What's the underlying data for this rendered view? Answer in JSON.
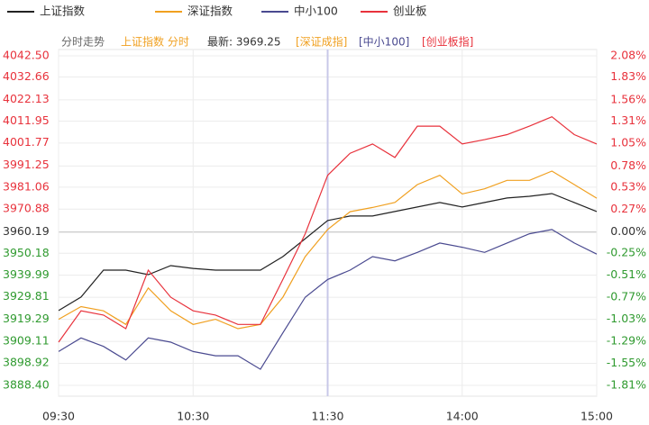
{
  "chart_data": {
    "type": "line",
    "header": {
      "mode": "分时走势",
      "index": "上证指数 分时",
      "latest": "最新: 3969.25",
      "link1": "[深证成指]",
      "link2": "[中小100]",
      "link3": "[创业板指]"
    },
    "x": [
      0,
      10,
      20,
      30,
      40,
      50,
      60,
      70,
      80,
      90,
      100,
      110,
      120,
      130,
      140,
      150,
      160,
      170,
      180,
      190,
      200,
      210,
      220,
      230,
      240
    ],
    "xlim": [
      0,
      240
    ],
    "xticks": [
      {
        "value": 0,
        "label": "09:30"
      },
      {
        "value": 60,
        "label": "10:30"
      },
      {
        "value": 120,
        "label": "11:30"
      },
      {
        "value": 180,
        "label": "14:00"
      },
      {
        "value": 240,
        "label": "15:00"
      }
    ],
    "ylim": [
      3888.4,
      4042.5
    ],
    "yticks": [
      {
        "value": 4042.5,
        "label": "4042.50"
      },
      4032.66,
      4022.13,
      4011.95,
      4001.77,
      3991.25,
      3981.06,
      3970.88,
      3960.19,
      3950.18,
      3939.99,
      3929.81,
      3919.29,
      3909.11,
      3898.92,
      {
        "value": 3888.4,
        "label": "3888.40"
      }
    ],
    "y2lim": [
      -1.81,
      2.08
    ],
    "y2ticks": [
      {
        "value": 2.08,
        "label": "2.08%"
      },
      {
        "value": 1.83,
        "label": "1.83%"
      },
      {
        "value": 1.56,
        "label": "1.56%"
      },
      {
        "value": 1.31,
        "label": "1.31%"
      },
      {
        "value": 1.05,
        "label": "1.05%"
      },
      {
        "value": 0.78,
        "label": "0.78%"
      },
      {
        "value": 0.53,
        "label": "0.53%"
      },
      {
        "value": 0.27,
        "label": "0.27%"
      },
      {
        "value": 0,
        "label": "0.00%"
      },
      {
        "value": -0.25,
        "label": "-0.25%"
      },
      {
        "value": -0.51,
        "label": "-0.51%"
      },
      {
        "value": -0.77,
        "label": "-0.77%"
      },
      {
        "value": -1.03,
        "label": "-1.03%"
      },
      {
        "value": -1.29,
        "label": "-1.29%"
      },
      {
        "value": -1.55,
        "label": "-1.55%"
      },
      {
        "value": -1.81,
        "label": "-1.81%"
      }
    ],
    "up_color": "#e8323c",
    "down_color": "#2f9a2f",
    "flat_color": "#333333",
    "grid": true,
    "series": [
      {
        "name": "上证指数",
        "color": "#222222",
        "values": [
          3923.4,
          3929.7,
          3942.3,
          3942.3,
          3940.2,
          3944.4,
          3943.1,
          3942.3,
          3942.3,
          3942.3,
          3948.6,
          3957.0,
          3965.5,
          3967.6,
          3967.6,
          3969.7,
          3971.8,
          3973.9,
          3971.8,
          3973.9,
          3976.0,
          3976.8,
          3978.1,
          3973.9,
          3969.7
        ]
      },
      {
        "name": "深证指数",
        "color": "#f0a020",
        "axis": "y2",
        "values": [
          -1.03,
          -0.88,
          -0.93,
          -1.09,
          -0.66,
          -0.93,
          -1.09,
          -1.03,
          -1.14,
          -1.09,
          -0.77,
          -0.29,
          0.03,
          0.24,
          0.29,
          0.35,
          0.56,
          0.67,
          0.45,
          0.51,
          0.61,
          0.61,
          0.72,
          0.56,
          0.4
        ]
      },
      {
        "name": "中小100",
        "color": "#4a4a90",
        "axis": "y2",
        "values": [
          -1.41,
          -1.25,
          -1.35,
          -1.51,
          -1.25,
          -1.3,
          -1.41,
          -1.46,
          -1.46,
          -1.62,
          -1.19,
          -0.77,
          -0.56,
          -0.45,
          -0.29,
          -0.34,
          -0.24,
          -0.13,
          -0.18,
          -0.24,
          -0.13,
          -0.02,
          0.03,
          -0.13,
          -0.26
        ]
      },
      {
        "name": "创业板",
        "color": "#e8323c",
        "axis": "y2",
        "values": [
          -1.3,
          -0.93,
          -0.98,
          -1.14,
          -0.45,
          -0.77,
          -0.93,
          -0.98,
          -1.09,
          -1.09,
          -0.56,
          -0.02,
          0.67,
          0.93,
          1.04,
          0.88,
          1.25,
          1.25,
          1.04,
          1.09,
          1.15,
          1.25,
          1.36,
          1.15,
          1.04
        ]
      }
    ]
  }
}
